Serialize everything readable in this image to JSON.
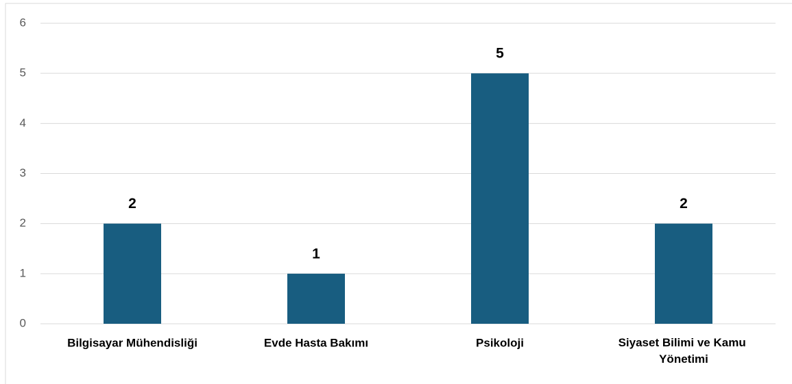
{
  "chart_data": {
    "type": "bar",
    "categories": [
      "Bilgisayar Mühendisliği",
      "Evde Hasta Bakımı",
      "Psikoloji",
      "Siyaset Bilimi ve Kamu Yönetimi"
    ],
    "values": [
      2,
      1,
      5,
      2
    ],
    "color": "#185d80",
    "ylim": [
      0,
      6
    ],
    "yticks": [
      0,
      1,
      2,
      3,
      4,
      5,
      6
    ],
    "grid": true
  }
}
